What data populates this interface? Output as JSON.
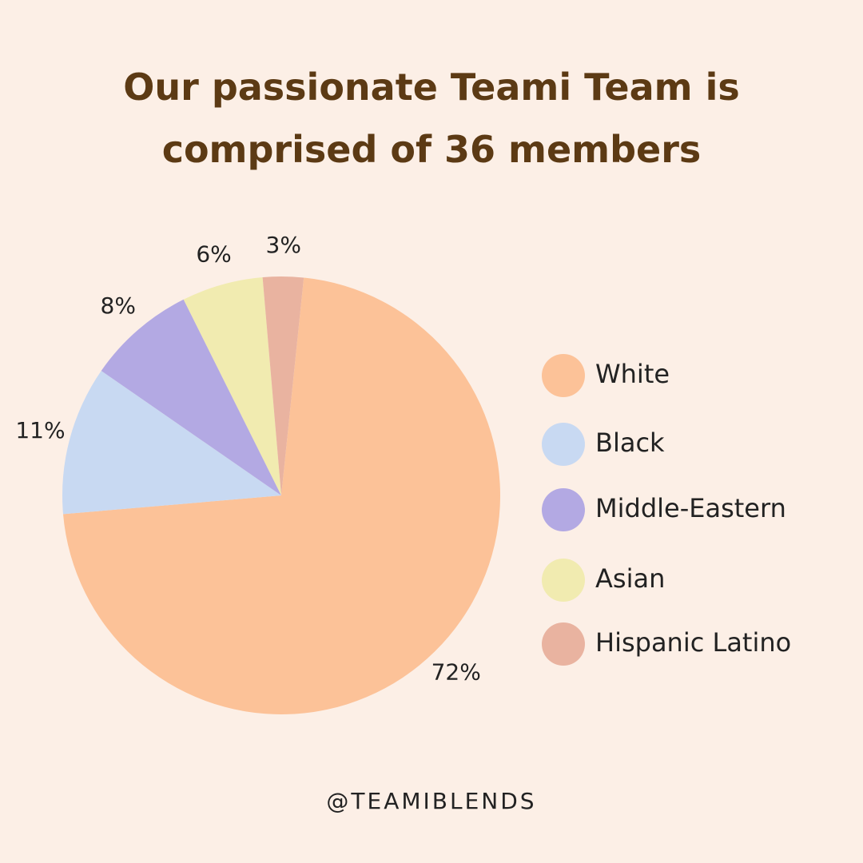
{
  "chart_data": {
    "type": "pie",
    "title": "Our passionate Teami Team is comprised of 36 members",
    "categories": [
      "White",
      "Black",
      "Middle-Eastern",
      "Asian",
      "Hispanic Latino"
    ],
    "values": [
      72,
      11,
      8,
      6,
      3
    ],
    "value_labels": [
      "72%",
      "11%",
      "8%",
      "6%",
      "3%"
    ],
    "colors": [
      "#fcc298",
      "#c8d9f2",
      "#b3a9e3",
      "#f1ebb0",
      "#e9b3a0"
    ],
    "legend": "right",
    "footer": "@TEAMIBLENDS"
  }
}
